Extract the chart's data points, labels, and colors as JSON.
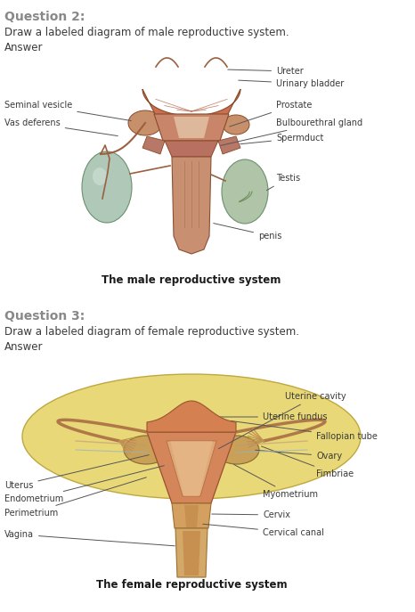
{
  "bg_color": "#ffffff",
  "q2_heading": "Question 2:",
  "q2_instruction": "Draw a labeled diagram of male reproductive system.",
  "q2_answer": "Answer",
  "q3_heading": "Question 3:",
  "q3_instruction": "Draw a labeled diagram of female reproductive system.",
  "q3_answer": "Answer",
  "male_caption": "The male reproductive system",
  "female_caption": "The female reproductive system",
  "label_color": "#3a3a3a",
  "label_fontsize": 7.0,
  "heading_color": "#888888",
  "heading_fontsize": 10,
  "body_fontsize": 8.5,
  "body_color": "#3a3a3a",
  "caption_fontsize": 8.5,
  "caption_color": "#1a1a1a",
  "line_color": "#555555",
  "line_lw": 0.7
}
